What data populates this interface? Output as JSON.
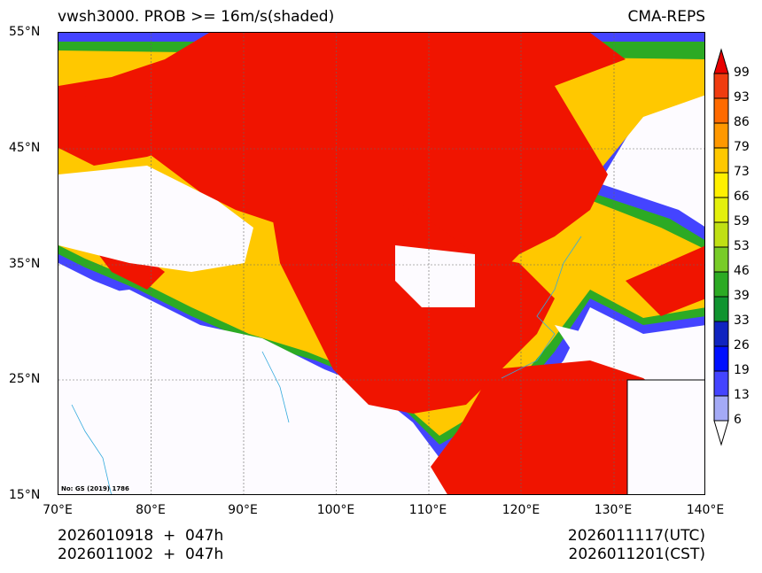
{
  "header": {
    "title": "vwsh3000. PROB >= 16m/s(shaded)",
    "source": "CMA-REPS"
  },
  "map": {
    "lat_labels": [
      "55°N",
      "45°N",
      "35°N",
      "25°N",
      "15°N"
    ],
    "lon_labels": [
      "70°E",
      "80°E",
      "90°E",
      "100°E",
      "110°E",
      "120°E",
      "130°E",
      "140°E"
    ],
    "watermark": "No: GS (2019) 1786",
    "extent": {
      "lon": [
        70,
        140
      ],
      "lat": [
        15,
        55
      ]
    }
  },
  "colorbar": {
    "levels": [
      "99",
      "93",
      "86",
      "79",
      "73",
      "66",
      "59",
      "53",
      "46",
      "39",
      "33",
      "26",
      "19",
      "13",
      "6"
    ],
    "colors": [
      "#f03c10",
      "#ff6a00",
      "#ff9800",
      "#ffc800",
      "#fff000",
      "#e4f00c",
      "#c0e014",
      "#78cc28",
      "#2caa24",
      "#109430",
      "#1024c0",
      "#0010ff",
      "#4444ff",
      "#a4aaf6"
    ],
    "over_color": "#e80000",
    "under_color": "#ffffff"
  },
  "footer": {
    "init_utc": "2026010918  +  047h",
    "init_cst": "2026011002  +  047h",
    "valid_utc": "2026011117(UTC)",
    "valid_cst": "2026011201(CST)"
  }
}
